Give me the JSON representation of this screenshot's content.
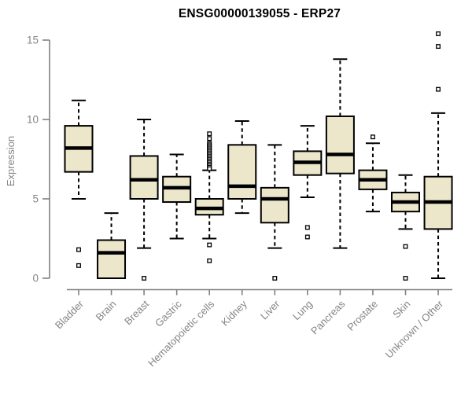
{
  "title": "ENSG00000139055 - ERP27",
  "chart_data": {
    "type": "boxplot",
    "title": "ENSG00000139055 - ERP27",
    "xlabel": "",
    "ylabel": "Expression",
    "ylim": [
      0,
      15
    ],
    "yticks": [
      "0",
      "5",
      "10",
      "15"
    ],
    "grid": false,
    "legend": "none",
    "colors": {
      "box_fill": "#ECE7CB",
      "box_stroke": "#000000",
      "median": "#000000",
      "axis": "#808080",
      "tick_label": "#858585",
      "title_text": "#000000",
      "background": "#ffffff"
    },
    "categories": [
      "Bladder",
      "Brain",
      "Breast",
      "Gastric",
      "Hematopoietic cells",
      "Kidney",
      "Liver",
      "Lung",
      "Pancreas",
      "Prostate",
      "Skin",
      "Unknown / Other"
    ],
    "series": [
      {
        "category": "Bladder",
        "whisker_low": 5.0,
        "q1": 6.7,
        "median": 8.2,
        "q3": 9.6,
        "whisker_high": 11.2,
        "outliers": [
          1.8,
          0.8
        ]
      },
      {
        "category": "Brain",
        "whisker_low": 0.0,
        "q1": 0.0,
        "median": 1.6,
        "q3": 2.4,
        "whisker_high": 4.1,
        "outliers": []
      },
      {
        "category": "Breast",
        "whisker_low": 1.9,
        "q1": 5.0,
        "median": 6.2,
        "q3": 7.7,
        "whisker_high": 10.0,
        "outliers": [
          0.0
        ]
      },
      {
        "category": "Gastric",
        "whisker_low": 2.5,
        "q1": 4.8,
        "median": 5.7,
        "q3": 6.4,
        "whisker_high": 7.8,
        "outliers": []
      },
      {
        "category": "Hematopoietic cells",
        "whisker_low": 2.5,
        "q1": 4.0,
        "median": 4.4,
        "q3": 5.0,
        "whisker_high": 6.8,
        "outliers": [
          9.1,
          8.8,
          8.5,
          8.4,
          8.3,
          8.2,
          8.1,
          8.0,
          7.9,
          7.8,
          7.7,
          7.6,
          7.5,
          7.4,
          7.3,
          7.2,
          7.1,
          7.0,
          6.9,
          2.1,
          1.1
        ]
      },
      {
        "category": "Kidney",
        "whisker_low": 4.1,
        "q1": 5.0,
        "median": 5.8,
        "q3": 8.4,
        "whisker_high": 9.9,
        "outliers": []
      },
      {
        "category": "Liver",
        "whisker_low": 1.9,
        "q1": 3.5,
        "median": 5.0,
        "q3": 5.7,
        "whisker_high": 8.4,
        "outliers": [
          0.0
        ]
      },
      {
        "category": "Lung",
        "whisker_low": 5.1,
        "q1": 6.5,
        "median": 7.3,
        "q3": 8.0,
        "whisker_high": 9.6,
        "outliers": [
          3.2,
          2.6
        ]
      },
      {
        "category": "Pancreas",
        "whisker_low": 1.9,
        "q1": 6.6,
        "median": 7.8,
        "q3": 10.2,
        "whisker_high": 13.8,
        "outliers": []
      },
      {
        "category": "Prostate",
        "whisker_low": 4.2,
        "q1": 5.6,
        "median": 6.2,
        "q3": 6.8,
        "whisker_high": 8.5,
        "outliers": [
          8.9
        ]
      },
      {
        "category": "Skin",
        "whisker_low": 3.1,
        "q1": 4.2,
        "median": 4.8,
        "q3": 5.4,
        "whisker_high": 6.5,
        "outliers": [
          2.0,
          0.0
        ]
      },
      {
        "category": "Unknown / Other",
        "whisker_low": 0.0,
        "q1": 3.1,
        "median": 4.8,
        "q3": 6.4,
        "whisker_high": 10.4,
        "outliers": [
          15.4,
          14.6,
          11.9
        ]
      }
    ]
  }
}
